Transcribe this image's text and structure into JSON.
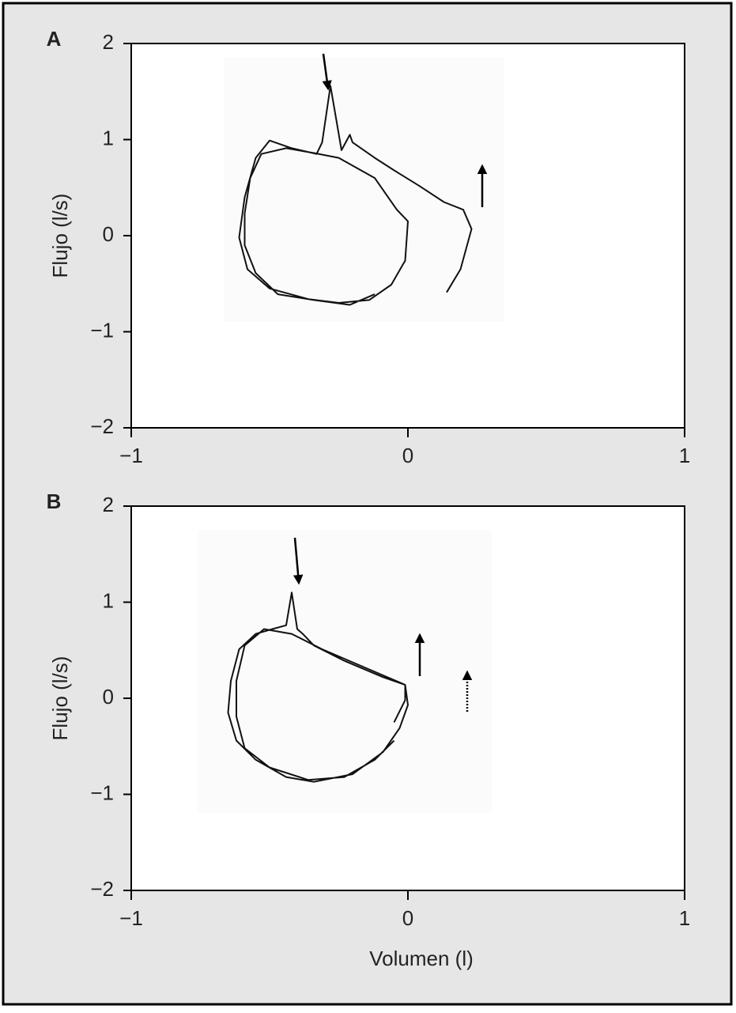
{
  "chart_data": [
    {
      "type": "line",
      "panel_label": "A",
      "ylabel": "Flujo (l/s)",
      "xlim": [
        -1,
        1
      ],
      "ylim": [
        -2,
        2
      ],
      "xticks": [
        {
          "value": -1,
          "label": "−1"
        },
        0,
        1
      ],
      "yticks": [
        2,
        1,
        0,
        {
          "value": -1,
          "label": "−1"
        },
        {
          "value": -2,
          "label": "−2"
        }
      ],
      "series": [
        {
          "color": "#111111",
          "x": [
            0.14,
            0.19,
            0.23,
            0.2,
            0.13,
            0.04,
            -0.05,
            -0.12,
            -0.2,
            -0.21,
            -0.24,
            -0.28,
            -0.31,
            -0.33,
            -0.42,
            -0.5,
            -0.55,
            -0.59,
            -0.61,
            -0.58,
            -0.5,
            -0.36,
            -0.25,
            -0.14,
            -0.06,
            -0.01,
            0.0,
            -0.04,
            -0.12,
            -0.25,
            -0.34,
            -0.44,
            -0.53,
            -0.57,
            -0.59,
            -0.59,
            -0.55,
            -0.47,
            -0.34,
            -0.21,
            -0.12
          ],
          "values": [
            -0.59,
            -0.35,
            0.07,
            0.27,
            0.35,
            0.52,
            0.68,
            0.81,
            0.97,
            1.05,
            0.89,
            1.56,
            0.97,
            0.85,
            0.91,
            0.99,
            0.81,
            0.4,
            -0.02,
            -0.35,
            -0.55,
            -0.66,
            -0.7,
            -0.67,
            -0.51,
            -0.26,
            0.15,
            0.27,
            0.6,
            0.81,
            0.86,
            0.91,
            0.85,
            0.6,
            0.23,
            -0.1,
            -0.39,
            -0.61,
            -0.67,
            -0.72,
            -0.61
          ]
        }
      ]
    },
    {
      "type": "line",
      "panel_label": "B",
      "ylabel": "Flujo (l/s)",
      "xlabel": "Volumen (l)",
      "xlim": [
        -1,
        1
      ],
      "ylim": [
        -2,
        2
      ],
      "xticks": [
        {
          "value": -1,
          "label": "−1"
        },
        0,
        1
      ],
      "yticks": [
        2,
        1,
        0,
        {
          "value": -1,
          "label": "−1"
        },
        {
          "value": -2,
          "label": "−2"
        }
      ],
      "series": [
        {
          "color": "#111111",
          "x": [
            -0.05,
            -0.01,
            -0.01,
            -0.09,
            -0.23,
            -0.34,
            -0.38,
            -0.4,
            -0.42,
            -0.44,
            -0.49,
            -0.55,
            -0.61,
            -0.64,
            -0.65,
            -0.62,
            -0.55,
            -0.44,
            -0.34,
            -0.2,
            -0.09,
            -0.03,
            0.0,
            -0.01,
            -0.14,
            -0.31,
            -0.42,
            -0.52,
            -0.59,
            -0.62,
            -0.62,
            -0.59,
            -0.5,
            -0.36,
            -0.23,
            -0.12,
            -0.05
          ],
          "values": [
            -0.25,
            -0.02,
            0.14,
            0.22,
            0.39,
            0.55,
            0.67,
            0.72,
            1.1,
            0.76,
            0.72,
            0.67,
            0.51,
            0.18,
            -0.15,
            -0.44,
            -0.64,
            -0.82,
            -0.87,
            -0.79,
            -0.56,
            -0.31,
            -0.07,
            0.14,
            0.3,
            0.51,
            0.67,
            0.72,
            0.55,
            0.18,
            -0.19,
            -0.52,
            -0.72,
            -0.85,
            -0.82,
            -0.64,
            -0.44
          ]
        }
      ]
    }
  ]
}
